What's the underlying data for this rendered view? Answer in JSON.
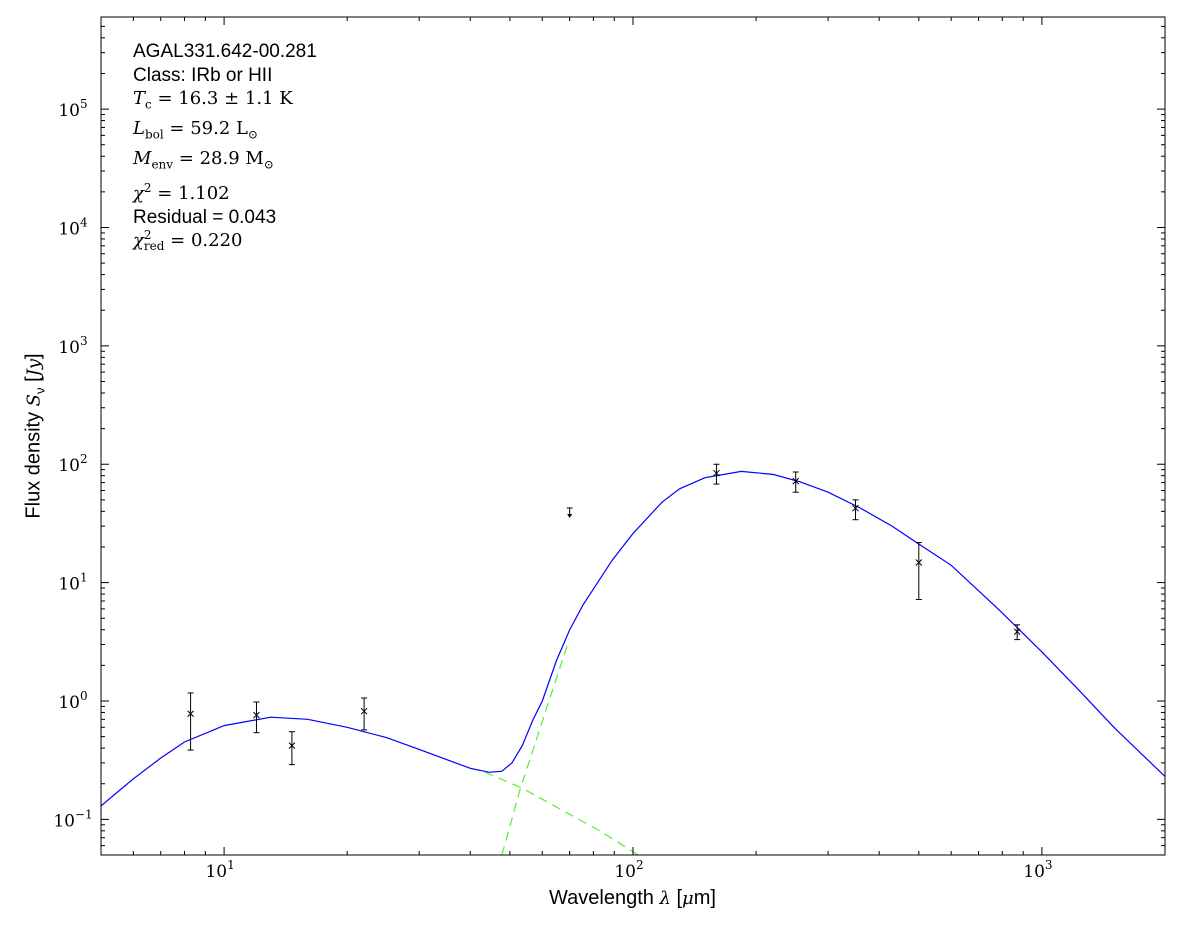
{
  "chart_data": {
    "type": "scatter",
    "xscale": "log",
    "yscale": "log",
    "xlim": [
      5,
      2000
    ],
    "ylim": [
      0.05,
      600000
    ],
    "grid": false,
    "xlabel": {
      "prefix": "Wavelength ",
      "sym": "λ",
      "suffix": " [",
      "unit_sym": "μ",
      "unit": "m]"
    },
    "ylabel": {
      "prefix": "Flux density ",
      "sym": "S",
      "sub": "ν",
      "suffix": " [",
      "unit": "Jy",
      "end": "]"
    },
    "xticks": [
      {
        "base": "10",
        "exp": "1",
        "value": 10
      },
      {
        "base": "10",
        "exp": "2",
        "value": 100
      },
      {
        "base": "10",
        "exp": "3",
        "value": 1000
      }
    ],
    "yticks": [
      {
        "base": "10",
        "exp": "−1",
        "value": 0.1
      },
      {
        "base": "10",
        "exp": "0",
        "value": 1
      },
      {
        "base": "10",
        "exp": "1",
        "value": 10
      },
      {
        "base": "10",
        "exp": "2",
        "value": 100
      },
      {
        "base": "10",
        "exp": "3",
        "value": 1000
      },
      {
        "base": "10",
        "exp": "4",
        "value": 10000
      },
      {
        "base": "10",
        "exp": "5",
        "value": 100000
      }
    ],
    "points": [
      {
        "x": 8.28,
        "y": 0.78,
        "lo": 0.385,
        "hi": 1.17
      },
      {
        "x": 12,
        "y": 0.76,
        "lo": 0.54,
        "hi": 0.98
      },
      {
        "x": 14.65,
        "y": 0.42,
        "lo": 0.29,
        "hi": 0.55
      },
      {
        "x": 22,
        "y": 0.82,
        "lo": 0.57,
        "hi": 1.06
      },
      {
        "x": 160,
        "y": 84,
        "lo": 68,
        "hi": 100
      },
      {
        "x": 250,
        "y": 72,
        "lo": 58,
        "hi": 86
      },
      {
        "x": 350,
        "y": 42.5,
        "lo": 34,
        "hi": 50
      },
      {
        "x": 500,
        "y": 14.8,
        "lo": 7.2,
        "hi": 21.8
      },
      {
        "x": 870,
        "y": 3.85,
        "lo": 3.3,
        "hi": 4.4
      }
    ],
    "upper_limits": [
      {
        "x": 70,
        "y": 38
      }
    ],
    "model_total": {
      "color": "#0000ff",
      "points": [
        [
          5,
          0.13
        ],
        [
          6,
          0.22
        ],
        [
          7,
          0.33
        ],
        [
          8,
          0.45
        ],
        [
          10,
          0.62
        ],
        [
          13,
          0.73
        ],
        [
          16,
          0.7
        ],
        [
          20,
          0.6
        ],
        [
          25,
          0.49
        ],
        [
          30,
          0.39
        ],
        [
          35,
          0.32
        ],
        [
          40,
          0.27
        ],
        [
          44.6,
          0.25
        ],
        [
          47.8,
          0.255
        ],
        [
          50.6,
          0.3
        ],
        [
          53.6,
          0.42
        ],
        [
          57,
          0.7
        ],
        [
          60,
          1.0
        ],
        [
          65,
          2.2
        ],
        [
          70,
          4.0
        ],
        [
          75.5,
          6.5
        ],
        [
          89,
          15.5
        ],
        [
          100,
          26
        ],
        [
          117.7,
          47.7
        ],
        [
          130,
          62
        ],
        [
          150,
          77
        ],
        [
          184,
          87
        ],
        [
          220,
          82
        ],
        [
          256,
          71
        ],
        [
          300,
          58
        ],
        [
          358,
          43
        ],
        [
          430,
          30
        ],
        [
          502,
          21
        ],
        [
          600,
          14
        ],
        [
          785,
          5.9
        ],
        [
          1000,
          2.6
        ],
        [
          1230,
          1.24
        ],
        [
          1500,
          0.6
        ],
        [
          2000,
          0.23
        ]
      ]
    },
    "model_warm": {
      "color": "#55ee33",
      "style": "dashed",
      "points": [
        [
          40,
          0.27
        ],
        [
          42.8,
          0.256
        ],
        [
          53.5,
          0.184
        ],
        [
          67,
          0.12
        ],
        [
          84,
          0.078
        ],
        [
          103,
          0.05
        ]
      ]
    },
    "model_cold": {
      "color": "#55ee33",
      "style": "dashed",
      "points": [
        [
          47.8,
          0.05
        ],
        [
          52.9,
          0.177
        ],
        [
          61.6,
          0.89
        ],
        [
          69.8,
          3.3
        ]
      ]
    }
  },
  "annotations": {
    "source": "AGAL331.642-00.281",
    "class": "Class: IRb or HII",
    "tc": {
      "sym": "T",
      "sub": "c",
      "rest": " = 16.3 ± 1.1 K"
    },
    "lbol": {
      "sym": "L",
      "sub": "bol",
      "rest": " = 59.2 L",
      "unit_sub": "⊙"
    },
    "menv": {
      "sym": "M",
      "sub": "env",
      "rest": " = 28.9 M",
      "unit_sub": "⊙"
    },
    "chi2": {
      "sym": "χ",
      "sup": "2",
      "rest": " = 1.102"
    },
    "residual": "Residual = 0.043",
    "chi2red": {
      "sym": "χ",
      "sup": "2",
      "sub": "red",
      "rest": " = 0.220"
    }
  }
}
